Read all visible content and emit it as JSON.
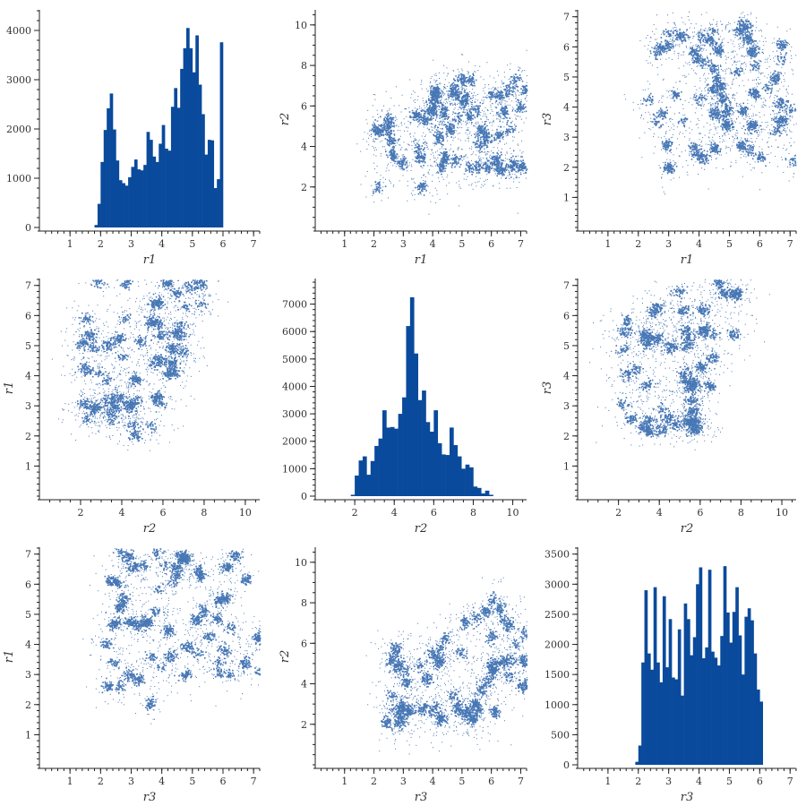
{
  "colors": {
    "accent": "#0a4a9c",
    "axis": "#222222",
    "text": "#333333"
  },
  "chart_data": [
    {
      "type": "bar",
      "panel": "r1-hist",
      "xlabel": "r1",
      "ylabel": "",
      "xlim": [
        0,
        7.2
      ],
      "ylim": [
        0,
        4400
      ],
      "xticks": [
        1,
        2,
        3,
        4,
        5,
        6,
        7
      ],
      "yticks": [
        0,
        1000,
        2000,
        3000,
        4000
      ],
      "bin_start": 1.8,
      "bin_width": 0.1,
      "values": [
        50,
        480,
        1330,
        1980,
        2420,
        2720,
        1990,
        1360,
        960,
        900,
        850,
        1020,
        1230,
        1380,
        1180,
        1160,
        1270,
        1940,
        1780,
        1440,
        1330,
        1700,
        2080,
        1600,
        1560,
        2450,
        2830,
        2430,
        3220,
        3640,
        4050,
        3640,
        3150,
        3900,
        2900,
        2300,
        1480,
        1780,
        1770,
        800,
        980,
        3760
      ]
    },
    {
      "type": "scatter",
      "panel": "r1-vs-r2",
      "xlabel": "r1",
      "ylabel": "r2",
      "xlim": [
        0,
        7.2
      ],
      "ylim": [
        0,
        10.7
      ],
      "xticks": [
        1,
        2,
        3,
        4,
        5,
        6,
        7
      ],
      "yticks": [
        2,
        4,
        6,
        8,
        10
      ]
    },
    {
      "type": "scatter",
      "panel": "r1-vs-r3",
      "xlabel": "r1",
      "ylabel": "r3",
      "xlim": [
        0,
        7.2
      ],
      "ylim": [
        0,
        7.2
      ],
      "xticks": [
        1,
        2,
        3,
        4,
        5,
        6,
        7
      ],
      "yticks": [
        1,
        2,
        3,
        4,
        5,
        6,
        7
      ]
    },
    {
      "type": "scatter",
      "panel": "r2-vs-r1",
      "xlabel": "r2",
      "ylabel": "r1",
      "xlim": [
        0,
        10.7
      ],
      "ylim": [
        0,
        7.2
      ],
      "xticks": [
        2,
        4,
        6,
        8,
        10
      ],
      "yticks": [
        1,
        2,
        3,
        4,
        5,
        6,
        7
      ]
    },
    {
      "type": "bar",
      "panel": "r2-hist",
      "xlabel": "r2",
      "ylabel": "",
      "xlim": [
        0,
        10.7
      ],
      "ylim": [
        0,
        7900
      ],
      "xticks": [
        2,
        4,
        6,
        8,
        10
      ],
      "yticks": [
        0,
        1000,
        2000,
        3000,
        4000,
        5000,
        6000,
        7000
      ],
      "bin_start": 1.8,
      "bin_width": 0.2,
      "values": [
        50,
        750,
        1300,
        1450,
        780,
        1280,
        1830,
        2100,
        3130,
        2500,
        2520,
        2460,
        3000,
        3600,
        6200,
        7250,
        5200,
        3500,
        3850,
        2700,
        2350,
        3130,
        1930,
        1520,
        1500,
        2500,
        1860,
        1450,
        1000,
        1150,
        1050,
        350,
        300,
        100,
        200,
        50
      ]
    },
    {
      "type": "scatter",
      "panel": "r2-vs-r3",
      "xlabel": "r2",
      "ylabel": "r3",
      "xlim": [
        0,
        10.7
      ],
      "ylim": [
        0,
        7.2
      ],
      "xticks": [
        2,
        4,
        6,
        8,
        10
      ],
      "yticks": [
        1,
        2,
        3,
        4,
        5,
        6,
        7
      ]
    },
    {
      "type": "scatter",
      "panel": "r3-vs-r1",
      "xlabel": "r3",
      "ylabel": "r1",
      "xlim": [
        0,
        7.2
      ],
      "ylim": [
        0,
        7.2
      ],
      "xticks": [
        1,
        2,
        3,
        4,
        5,
        6,
        7
      ],
      "yticks": [
        1,
        2,
        3,
        4,
        5,
        6,
        7
      ]
    },
    {
      "type": "scatter",
      "panel": "r3-vs-r2",
      "xlabel": "r3",
      "ylabel": "r2",
      "xlim": [
        0,
        7.2
      ],
      "ylim": [
        0,
        10.7
      ],
      "xticks": [
        1,
        2,
        3,
        4,
        5,
        6,
        7
      ],
      "yticks": [
        2,
        4,
        6,
        8,
        10
      ]
    },
    {
      "type": "bar",
      "panel": "r3-hist",
      "xlabel": "r3",
      "ylabel": "",
      "xlim": [
        0,
        7.2
      ],
      "ylim": [
        0,
        3600
      ],
      "xticks": [
        1,
        2,
        3,
        4,
        5,
        6,
        7
      ],
      "yticks": [
        0,
        500,
        1000,
        1500,
        2000,
        2500,
        3000,
        3500
      ],
      "bin_start": 1.9,
      "bin_width": 0.1,
      "values": [
        50,
        320,
        1700,
        2900,
        1850,
        1580,
        2950,
        1700,
        1370,
        2800,
        1620,
        2420,
        1450,
        1420,
        2250,
        1150,
        2680,
        2420,
        1820,
        2120,
        3000,
        3280,
        1770,
        1950,
        3240,
        1880,
        1780,
        1650,
        2140,
        3300,
        2530,
        2030,
        2540,
        2950,
        2150,
        1500,
        2460,
        2600,
        2400,
        1850,
        1250,
        1050
      ]
    }
  ]
}
